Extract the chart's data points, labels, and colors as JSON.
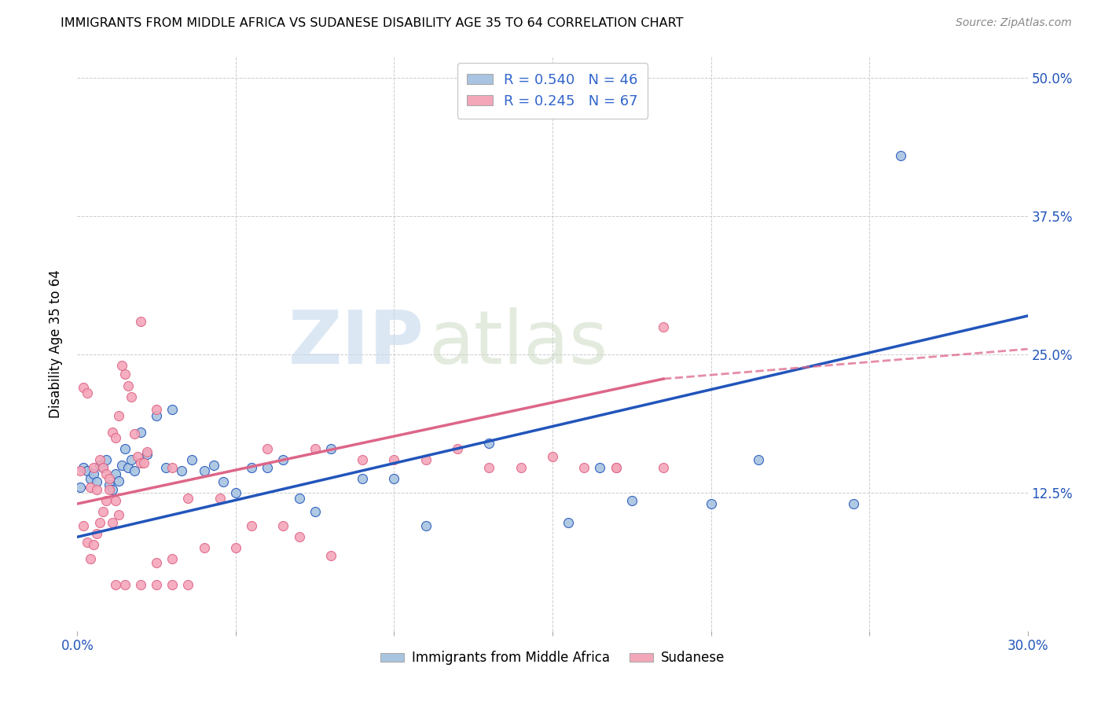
{
  "title": "IMMIGRANTS FROM MIDDLE AFRICA VS SUDANESE DISABILITY AGE 35 TO 64 CORRELATION CHART",
  "source": "Source: ZipAtlas.com",
  "ylabel": "Disability Age 35 to 64",
  "xlim": [
    0.0,
    0.3
  ],
  "ylim": [
    0.0,
    0.52
  ],
  "xticks": [
    0.0,
    0.05,
    0.1,
    0.15,
    0.2,
    0.25,
    0.3
  ],
  "xticklabels": [
    "0.0%",
    "",
    "",
    "",
    "",
    "",
    "30.0%"
  ],
  "yticks": [
    0.0,
    0.125,
    0.25,
    0.375,
    0.5
  ],
  "yticklabels": [
    "",
    "12.5%",
    "25.0%",
    "37.5%",
    "50.0%"
  ],
  "blue_R": 0.54,
  "blue_N": 46,
  "pink_R": 0.245,
  "pink_N": 67,
  "blue_label": "Immigrants from Middle Africa",
  "pink_label": "Sudanese",
  "blue_color": "#a8c4e0",
  "pink_color": "#f4a7b9",
  "blue_line_color": "#2255bb",
  "pink_line_color": "#dd6688",
  "legend_R_color": "#3366cc",
  "watermark_zip": "ZIP",
  "watermark_atlas": "atlas",
  "blue_line_start_y": 0.085,
  "blue_line_end_y": 0.285,
  "pink_line_start_y": 0.115,
  "pink_line_solid_end_x": 0.185,
  "pink_line_solid_end_y": 0.228,
  "pink_line_dash_end_x": 0.3,
  "pink_line_dash_end_y": 0.255,
  "blue_scatter_x": [
    0.001,
    0.002,
    0.003,
    0.004,
    0.005,
    0.006,
    0.007,
    0.008,
    0.009,
    0.01,
    0.011,
    0.012,
    0.013,
    0.014,
    0.015,
    0.016,
    0.017,
    0.018,
    0.02,
    0.022,
    0.025,
    0.028,
    0.03,
    0.033,
    0.036,
    0.04,
    0.043,
    0.046,
    0.05,
    0.055,
    0.06,
    0.065,
    0.07,
    0.075,
    0.08,
    0.09,
    0.1,
    0.11,
    0.13,
    0.155,
    0.165,
    0.175,
    0.2,
    0.215,
    0.245,
    0.26
  ],
  "blue_scatter_y": [
    0.13,
    0.148,
    0.145,
    0.138,
    0.142,
    0.135,
    0.15,
    0.148,
    0.155,
    0.132,
    0.128,
    0.142,
    0.136,
    0.15,
    0.165,
    0.148,
    0.155,
    0.145,
    0.18,
    0.16,
    0.195,
    0.148,
    0.2,
    0.145,
    0.155,
    0.145,
    0.15,
    0.135,
    0.125,
    0.148,
    0.148,
    0.155,
    0.12,
    0.108,
    0.165,
    0.138,
    0.138,
    0.095,
    0.17,
    0.098,
    0.148,
    0.118,
    0.115,
    0.155,
    0.115,
    0.43
  ],
  "pink_scatter_x": [
    0.001,
    0.002,
    0.003,
    0.004,
    0.005,
    0.006,
    0.007,
    0.008,
    0.009,
    0.01,
    0.011,
    0.012,
    0.013,
    0.014,
    0.015,
    0.016,
    0.017,
    0.018,
    0.019,
    0.02,
    0.021,
    0.022,
    0.002,
    0.003,
    0.004,
    0.005,
    0.006,
    0.007,
    0.008,
    0.009,
    0.01,
    0.011,
    0.012,
    0.013,
    0.025,
    0.03,
    0.035,
    0.04,
    0.045,
    0.05,
    0.055,
    0.06,
    0.065,
    0.07,
    0.075,
    0.08,
    0.09,
    0.1,
    0.11,
    0.12,
    0.13,
    0.14,
    0.15,
    0.16,
    0.17,
    0.02,
    0.025,
    0.03,
    0.17,
    0.185,
    0.02,
    0.025,
    0.03,
    0.035,
    0.015,
    0.012,
    0.185
  ],
  "pink_scatter_y": [
    0.145,
    0.22,
    0.215,
    0.13,
    0.148,
    0.128,
    0.155,
    0.148,
    0.142,
    0.138,
    0.18,
    0.175,
    0.195,
    0.24,
    0.232,
    0.222,
    0.212,
    0.178,
    0.158,
    0.152,
    0.152,
    0.162,
    0.095,
    0.08,
    0.065,
    0.078,
    0.088,
    0.098,
    0.108,
    0.118,
    0.128,
    0.098,
    0.118,
    0.105,
    0.062,
    0.065,
    0.12,
    0.075,
    0.12,
    0.075,
    0.095,
    0.165,
    0.095,
    0.085,
    0.165,
    0.068,
    0.155,
    0.155,
    0.155,
    0.165,
    0.148,
    0.148,
    0.158,
    0.148,
    0.148,
    0.28,
    0.2,
    0.148,
    0.148,
    0.148,
    0.042,
    0.042,
    0.042,
    0.042,
    0.042,
    0.042,
    0.275
  ]
}
